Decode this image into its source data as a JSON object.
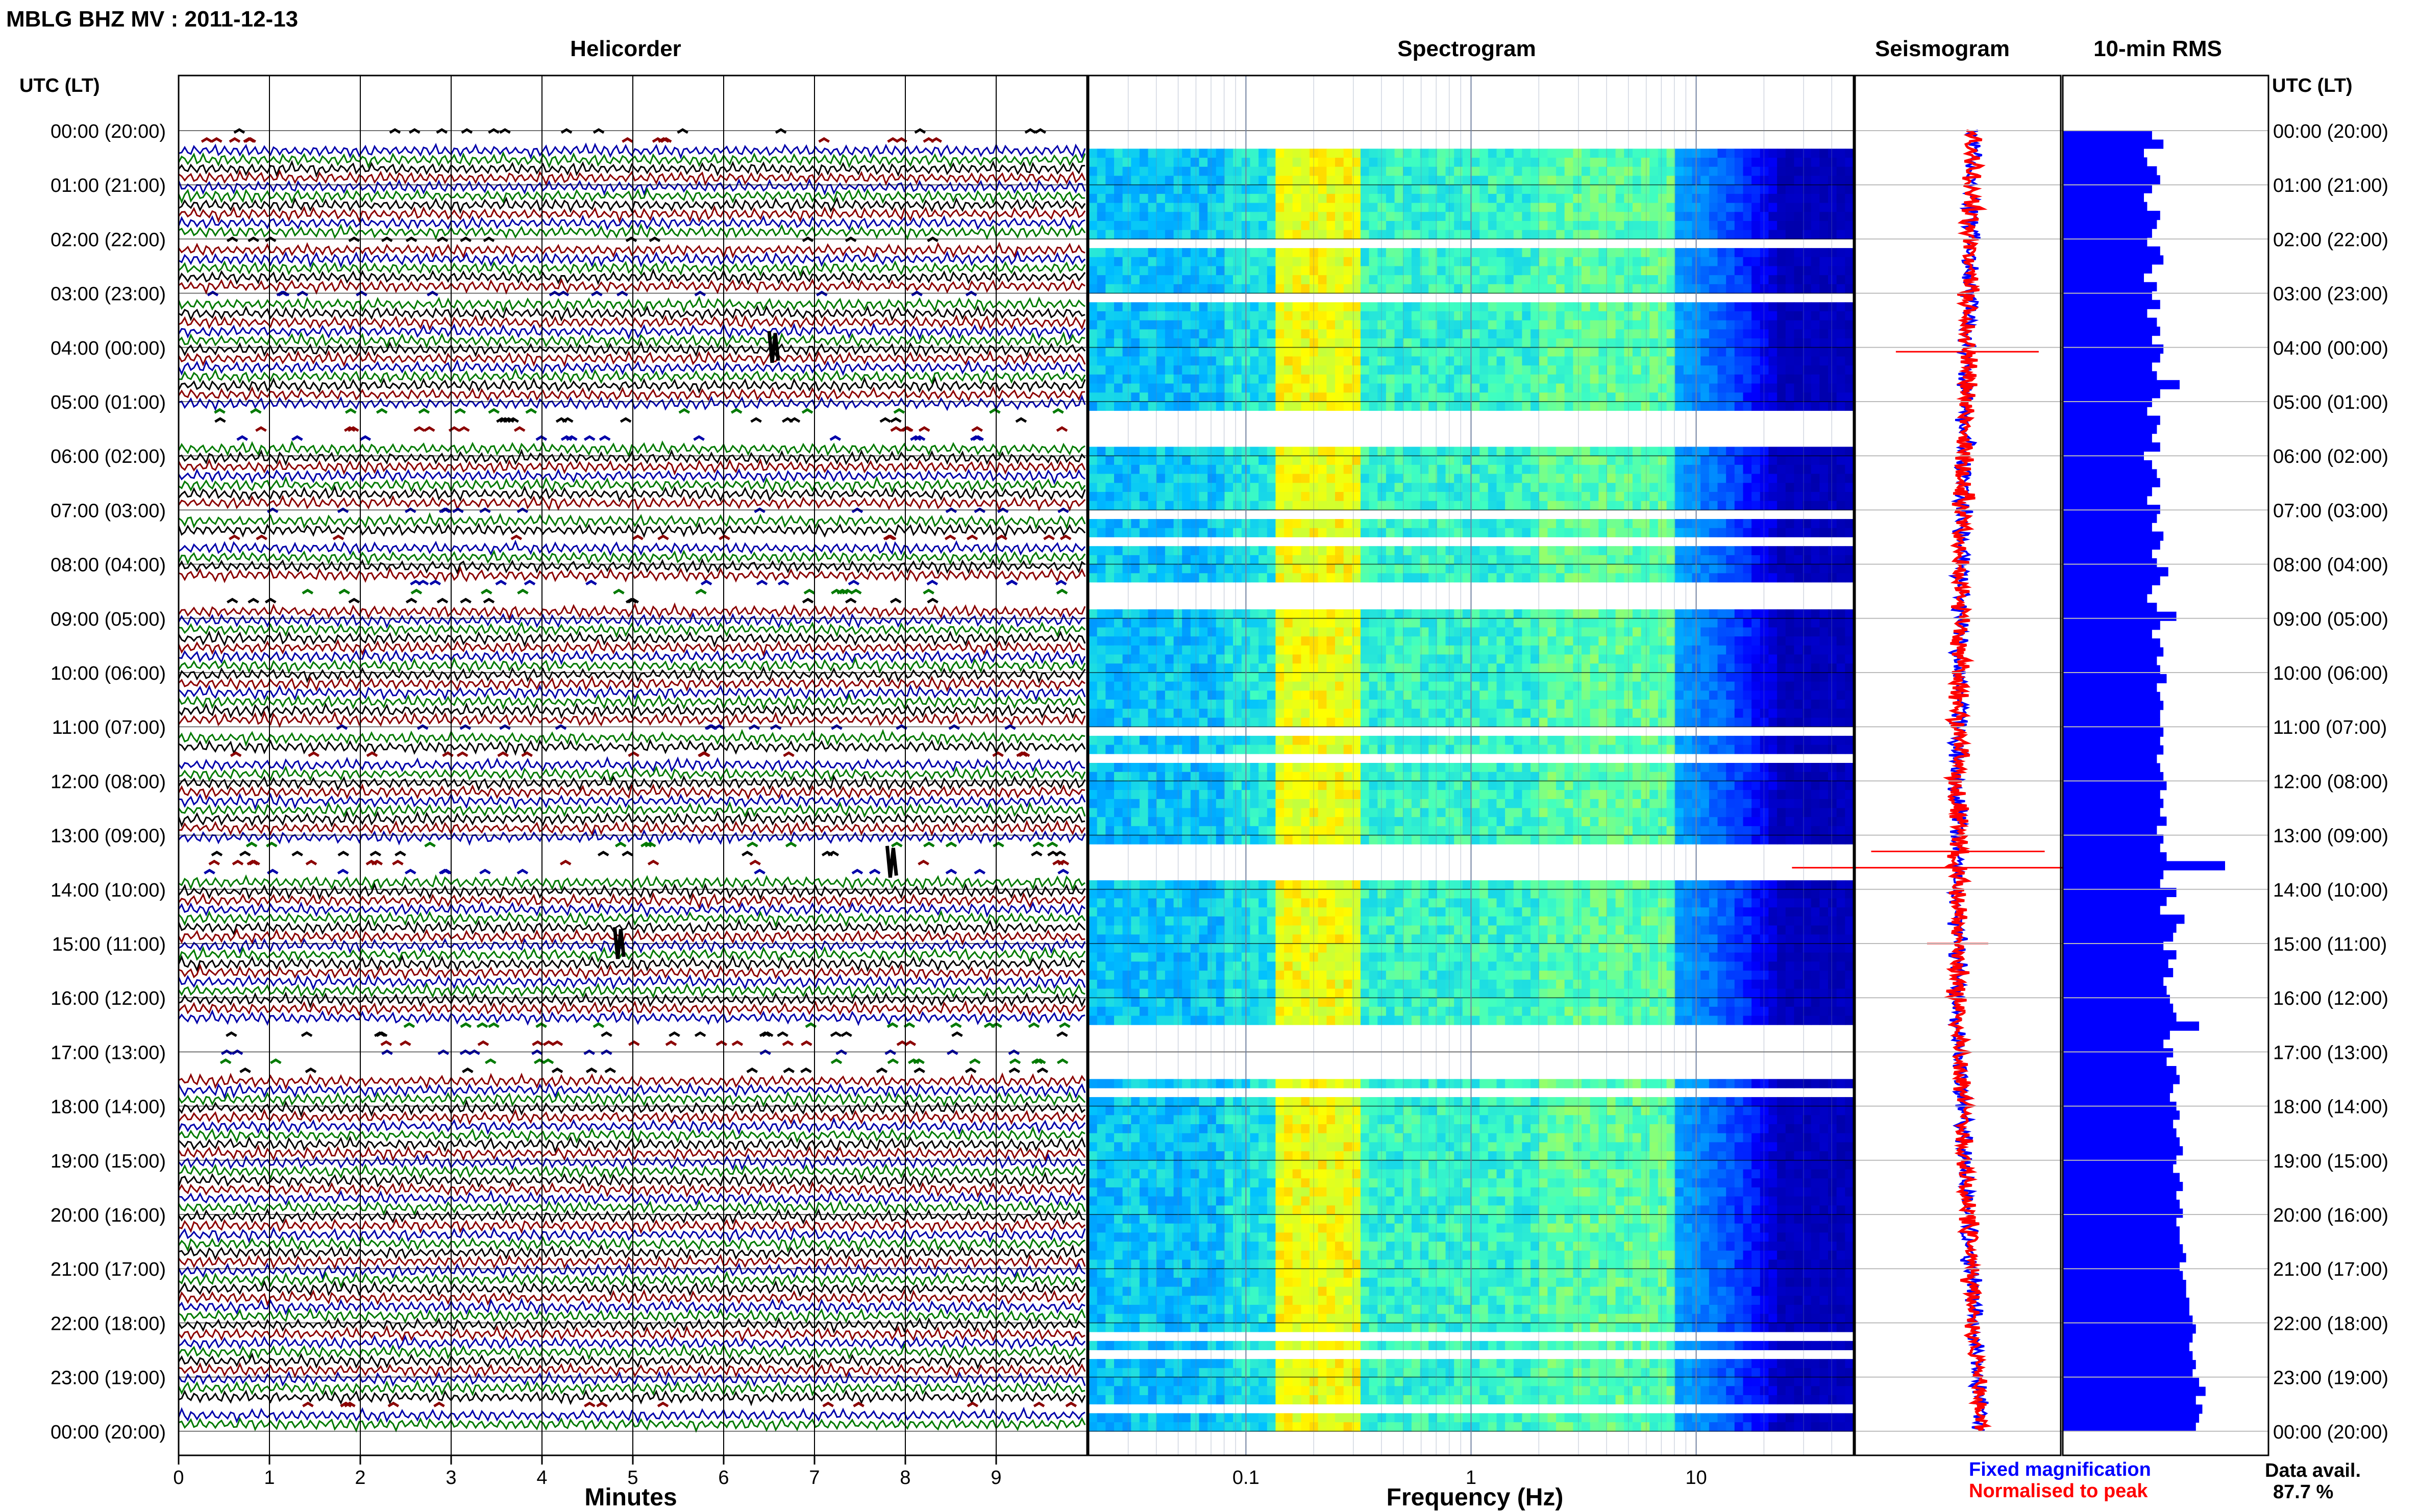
{
  "header": {
    "title": "MBLG BHZ MV : 2011-12-13"
  },
  "panels": {
    "helicorder_title": "Helicorder",
    "spectrogram_title": "Spectrogram",
    "seismogram_title": "Seismogram",
    "rms_title": "10-min RMS",
    "time_axis_label": "UTC (LT)"
  },
  "legend": {
    "fixed_label": "Fixed magnification",
    "fixed_color": "#0000ff",
    "normalised_label": "Normalised to peak",
    "normalised_color": "#ff0000"
  },
  "availability": {
    "label": "Data avail.",
    "value": "87.7 %"
  },
  "colors": {
    "trace_cycle": [
      "#000000",
      "#8b0000",
      "#0000aa",
      "#007a00"
    ],
    "rms_bar": "#0000ff",
    "spectrogram_low": "#00008f",
    "spectrogram_high": "#ffff00"
  },
  "chart_data": [
    {
      "type": "line",
      "name": "helicorder",
      "title": "Helicorder",
      "xlabel": "Minutes",
      "ylabel": "UTC (LT)",
      "x_ticks": [
        "0",
        "1",
        "2",
        "3",
        "4",
        "5",
        "6",
        "7",
        "8",
        "9"
      ],
      "xlim": [
        0,
        10
      ],
      "lines_per_hour": 6,
      "row_labels": [
        "00:00 (20:00)",
        "01:00 (21:00)",
        "02:00 (22:00)",
        "03:00 (23:00)",
        "04:00 (00:00)",
        "05:00 (01:00)",
        "06:00 (02:00)",
        "07:00 (03:00)",
        "08:00 (04:00)",
        "09:00 (05:00)",
        "10:00 (06:00)",
        "11:00 (07:00)",
        "12:00 (08:00)",
        "13:00 (09:00)",
        "14:00 (10:00)",
        "15:00 (11:00)",
        "16:00 (12:00)",
        "17:00 (13:00)",
        "18:00 (14:00)",
        "19:00 (15:00)",
        "20:00 (16:00)",
        "21:00 (17:00)",
        "22:00 (18:00)",
        "23:00 (19:00)",
        "00:00 (20:00)"
      ],
      "events": [
        {
          "time": "04:00",
          "minute": 6.5
        },
        {
          "time": "13:30",
          "minute": 7.8
        },
        {
          "time": "15:00",
          "minute": 4.8
        }
      ]
    },
    {
      "type": "heatmap",
      "name": "spectrogram",
      "title": "Spectrogram",
      "xlabel": "Frequency (Hz)",
      "x_scale": "log",
      "xlim": [
        0.02,
        50
      ],
      "x_ticks": [
        "0.1",
        "1",
        "10"
      ],
      "peak_band_hz": [
        0.15,
        0.3
      ],
      "gaps_utc": [
        [
          "00:00",
          "00:20"
        ],
        [
          "02:00",
          "02:05"
        ],
        [
          "03:00",
          "03:05"
        ],
        [
          "05:10",
          "05:50"
        ],
        [
          "07:00",
          "07:05"
        ],
        [
          "07:30",
          "07:35"
        ],
        [
          "08:20",
          "08:50"
        ],
        [
          "11:00",
          "11:05"
        ],
        [
          "11:30",
          "11:35"
        ],
        [
          "13:10",
          "13:50"
        ],
        [
          "16:30",
          "17:25"
        ],
        [
          "17:45",
          "17:50"
        ],
        [
          "22:15",
          "22:20"
        ],
        [
          "22:35",
          "22:40"
        ],
        [
          "23:30",
          "23:35"
        ]
      ]
    },
    {
      "type": "line",
      "name": "seismogram",
      "title": "Seismogram",
      "series": [
        {
          "name": "Fixed magnification",
          "color": "#0000ff"
        },
        {
          "name": "Normalised to peak",
          "color": "#ff0000"
        }
      ]
    },
    {
      "type": "bar",
      "name": "rms",
      "title": "10-min RMS",
      "orientation": "horizontal",
      "values": [
        0.55,
        0.62,
        0.5,
        0.52,
        0.58,
        0.6,
        0.55,
        0.5,
        0.52,
        0.6,
        0.58,
        0.55,
        0.52,
        0.6,
        0.62,
        0.55,
        0.5,
        0.58,
        0.55,
        0.6,
        0.52,
        0.58,
        0.6,
        0.55,
        0.62,
        0.6,
        0.55,
        0.58,
        0.72,
        0.6,
        0.55,
        0.52,
        0.6,
        0.58,
        0.55,
        0.6,
        0.5,
        0.55,
        0.58,
        0.6,
        0.55,
        0.52,
        0.6,
        0.58,
        0.55,
        0.62,
        0.6,
        0.55,
        0.58,
        0.65,
        0.6,
        0.55,
        0.52,
        0.58,
        0.7,
        0.6,
        0.55,
        0.6,
        0.62,
        0.58,
        0.6,
        0.64,
        0.58,
        0.6,
        0.62,
        0.6,
        0.6,
        0.62,
        0.6,
        0.62,
        0.58,
        0.6,
        0.62,
        0.64,
        0.6,
        0.62,
        0.6,
        0.64,
        0.58,
        0.62,
        0.6,
        0.64,
        1.0,
        0.62,
        0.6,
        0.7,
        0.64,
        0.6,
        0.75,
        0.7,
        0.68,
        0.62,
        0.7,
        0.65,
        0.68,
        0.62,
        0.64,
        0.66,
        0.68,
        0.7,
        0.84,
        0.66,
        0.62,
        0.68,
        0.64,
        0.7,
        0.72,
        0.68,
        0.66,
        0.7,
        0.72,
        0.68,
        0.7,
        0.72,
        0.74,
        0.7,
        0.68,
        0.72,
        0.74,
        0.7,
        0.72,
        0.74,
        0.7,
        0.72,
        0.72,
        0.74,
        0.76,
        0.72,
        0.74,
        0.76,
        0.76,
        0.78,
        0.78,
        0.8,
        0.82,
        0.8,
        0.78,
        0.8,
        0.82,
        0.8,
        0.84,
        0.88,
        0.82,
        0.86,
        0.84,
        0.82
      ]
    }
  ]
}
